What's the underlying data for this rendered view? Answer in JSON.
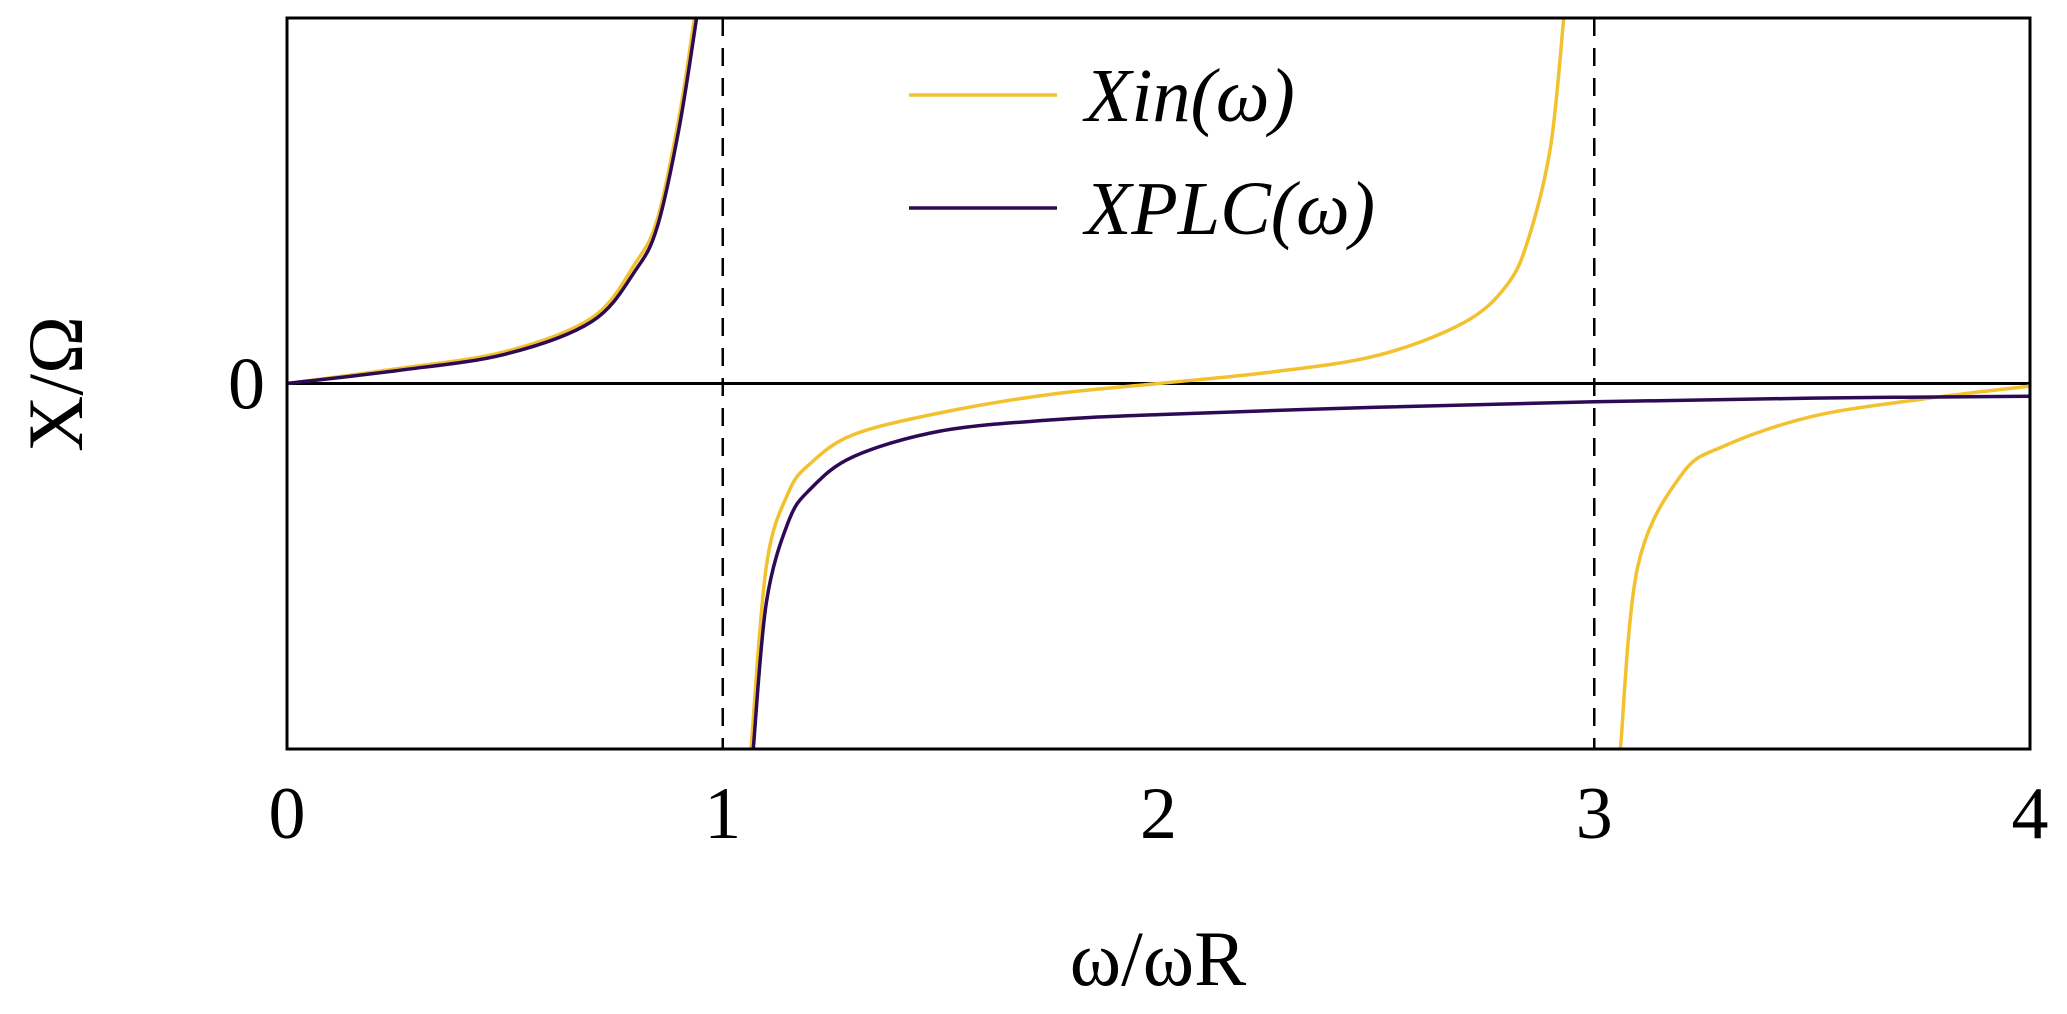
{
  "chart_data": {
    "type": "line",
    "x_label": "ω/ωR",
    "y_label": "X/Ω",
    "xlim": [
      0,
      4
    ],
    "xticks": [
      0,
      1,
      2,
      3,
      4
    ],
    "ylim": [
      -1,
      1
    ],
    "yticks": [
      0
    ],
    "vlines": [
      1,
      3
    ],
    "legend": "top-center",
    "series": [
      {
        "name": "Xin(ω)",
        "color": "#f2c12e",
        "x": [
          0,
          0.25,
          0.5,
          0.7,
          0.8,
          0.85,
          0.9,
          0.935,
          1,
          1.065,
          1.1,
          1.15,
          1.2,
          1.3,
          1.5,
          1.75,
          2.0,
          2.25,
          2.5,
          2.7,
          2.8,
          2.85,
          2.9,
          2.93,
          3,
          3.06,
          3.1,
          3.2,
          3.3,
          3.5,
          3.75,
          4.0
        ],
        "values": [
          0,
          0.04,
          0.087,
          0.18,
          0.33,
          0.45,
          0.73,
          1.0,
          null,
          -1.0,
          -0.5,
          -0.3,
          -0.22,
          -0.14,
          -0.08,
          -0.03,
          0,
          0.03,
          0.076,
          0.166,
          0.27,
          0.4,
          0.65,
          1.0,
          null,
          -1.0,
          -0.5,
          -0.25,
          -0.17,
          -0.09,
          -0.043,
          -0.007
        ]
      },
      {
        "name": "XPLC(ω)",
        "color": "#2d0a55",
        "x": [
          0,
          0.25,
          0.5,
          0.7,
          0.8,
          0.85,
          0.9,
          0.94,
          1,
          1.07,
          1.1,
          1.15,
          1.2,
          1.3,
          1.5,
          1.75,
          2.0,
          2.5,
          3.0,
          3.5,
          4.0
        ],
        "values": [
          0,
          0.035,
          0.08,
          0.17,
          0.31,
          0.43,
          0.7,
          1.0,
          null,
          -1.0,
          -0.6,
          -0.38,
          -0.29,
          -0.2,
          -0.13,
          -0.1,
          -0.085,
          -0.065,
          -0.05,
          -0.04,
          -0.035
        ]
      }
    ]
  }
}
